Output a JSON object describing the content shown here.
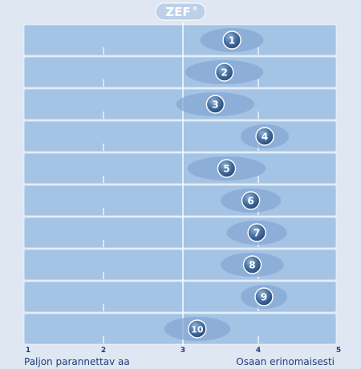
{
  "brand": {
    "logo_text": "ZEF",
    "mark": "®"
  },
  "chart_data": {
    "type": "scatter",
    "orientation": "horizontal",
    "xlim": [
      1,
      5
    ],
    "x_ticks": [
      "1",
      "2",
      "3",
      "4",
      "5"
    ],
    "reference_line": 3,
    "anchors": {
      "left": "Paljon parannettav aa",
      "right": "Osaan erinomaisesti"
    },
    "items": [
      {
        "label": "1",
        "value": 3.65,
        "spread": 0.42
      },
      {
        "label": "2",
        "value": 3.55,
        "spread": 0.52
      },
      {
        "label": "3",
        "value": 3.43,
        "spread": 0.52
      },
      {
        "label": "4",
        "value": 4.08,
        "spread": 0.3
      },
      {
        "label": "5",
        "value": 3.58,
        "spread": 0.52
      },
      {
        "label": "6",
        "value": 3.9,
        "spread": 0.4
      },
      {
        "label": "7",
        "value": 3.98,
        "spread": 0.4
      },
      {
        "label": "8",
        "value": 3.92,
        "spread": 0.42
      },
      {
        "label": "9",
        "value": 4.07,
        "spread": 0.29
      },
      {
        "label": "10",
        "value": 3.19,
        "spread": 0.44
      }
    ],
    "colors": {
      "background": "#dfe7f2",
      "band": "#a4c4e6",
      "band_edge": "#ffffff",
      "halo": "#86a8d1",
      "marker": "#3f6797",
      "marker_light": "#7fa1cb",
      "tick_text": "#1f3f79",
      "anchor_text": "#1f3f79",
      "logo_bg": "#bcd0e8",
      "logo_text": "#ffffff"
    }
  }
}
